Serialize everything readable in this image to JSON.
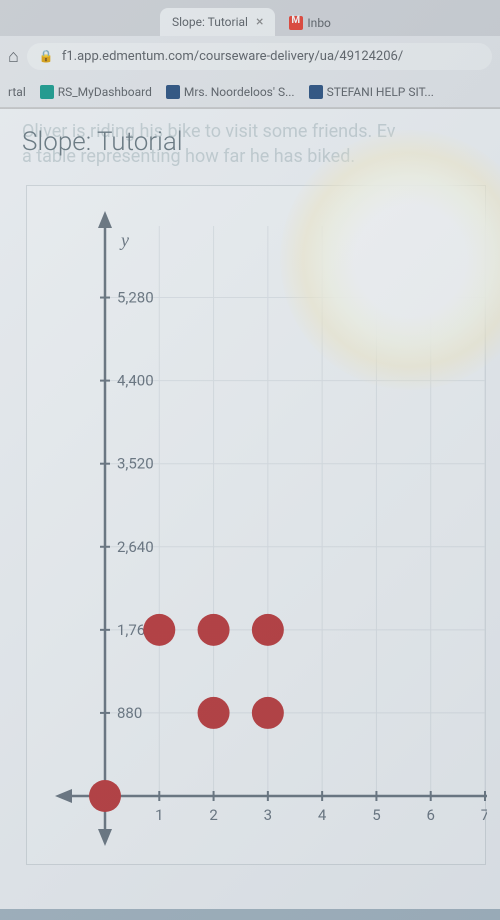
{
  "browser": {
    "tab_title": "Slope: Tutorial",
    "inactive_tab": "Inbo",
    "url": "f1.app.edmentum.com/courseware-delivery/ua/49124206/",
    "bookmarks": [
      {
        "label": "rtal"
      },
      {
        "label": "RS_MyDashboard"
      },
      {
        "label": "Mrs. Noordeloos' S..."
      },
      {
        "label": "STEFANI HELP SIT..."
      }
    ]
  },
  "page": {
    "title": "Slope: Tutorial",
    "behind1": "Oliver is riding his bike to visit some friends. Ev",
    "behind2": "a table representing how far he has biked."
  },
  "chart": {
    "type": "scatter",
    "background_color": "#f8fafb",
    "grid_color": "#e4e8eb",
    "axis_color": "#6b7680",
    "point_color": "#c13838",
    "point_radius": 16,
    "y_label": "y",
    "y_label_fontsize": 18,
    "ylim": [
      0,
      5720
    ],
    "y_ticks": [
      880,
      1760,
      2640,
      3520,
      4400,
      5280
    ],
    "xlim": [
      0,
      7
    ],
    "x_ticks": [
      1,
      2,
      3,
      4,
      5,
      6,
      7
    ],
    "tick_fontsize": 15,
    "tick_color": "#6b7680",
    "points": [
      {
        "x": 0,
        "y": 0
      },
      {
        "x": 1,
        "y": 1760
      },
      {
        "x": 2,
        "y": 1760
      },
      {
        "x": 3,
        "y": 1760
      },
      {
        "x": 2,
        "y": 880
      },
      {
        "x": 3,
        "y": 880
      }
    ]
  }
}
